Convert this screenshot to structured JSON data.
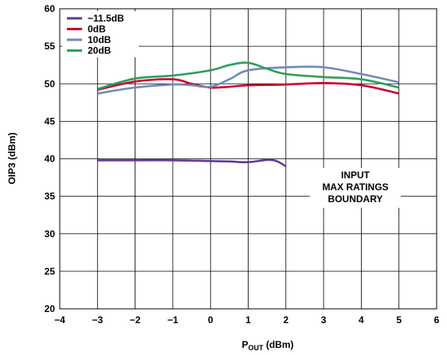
{
  "chart_data": {
    "type": "line",
    "title": "",
    "xlabel_main": "P",
    "xlabel_sub": "OUT",
    "xlabel_unit": " (dBm)",
    "ylabel": "OIP3 (dBm)",
    "xlim": [
      -4,
      6
    ],
    "ylim": [
      20,
      60
    ],
    "x_ticks": [
      "−4",
      "−3",
      "−2",
      "−1",
      "0",
      "1",
      "2",
      "3",
      "4",
      "5",
      "6"
    ],
    "y_ticks": [
      "20",
      "25",
      "30",
      "35",
      "40",
      "45",
      "50",
      "55",
      "60"
    ],
    "grid": true,
    "legend_position": "top-left",
    "annotation": [
      "INPUT",
      "MAX RATINGS",
      "BOUNDARY"
    ],
    "series": [
      {
        "name": "−11.5dB",
        "color": "#5b3a96",
        "points": [
          [
            -3,
            39.8
          ],
          [
            -2,
            39.8
          ],
          [
            -1,
            39.8
          ],
          [
            0,
            39.7
          ],
          [
            0.5,
            39.65
          ],
          [
            1,
            39.55
          ],
          [
            1.5,
            39.85
          ],
          [
            1.75,
            39.7
          ],
          [
            2,
            39.0
          ]
        ]
      },
      {
        "name": "0dB",
        "color": "#cc0033",
        "points": [
          [
            -3,
            49.2
          ],
          [
            -2,
            50.3
          ],
          [
            -1,
            50.6
          ],
          [
            -0.5,
            50.0
          ],
          [
            0,
            49.5
          ],
          [
            0.5,
            49.6
          ],
          [
            1,
            49.8
          ],
          [
            2,
            49.9
          ],
          [
            3,
            50.1
          ],
          [
            4,
            49.8
          ],
          [
            5,
            48.7
          ]
        ]
      },
      {
        "name": "10dB",
        "color": "#6f8ab8",
        "points": [
          [
            -3,
            48.7
          ],
          [
            -2,
            49.5
          ],
          [
            -1,
            49.9
          ],
          [
            -0.5,
            49.8
          ],
          [
            0,
            49.6
          ],
          [
            0.5,
            50.6
          ],
          [
            1,
            51.8
          ],
          [
            2,
            52.2
          ],
          [
            3,
            52.2
          ],
          [
            4,
            51.3
          ],
          [
            5,
            50.2
          ]
        ]
      },
      {
        "name": "20dB",
        "color": "#2e9e5b",
        "points": [
          [
            -3,
            49.3
          ],
          [
            -2,
            50.7
          ],
          [
            -1,
            51.1
          ],
          [
            0,
            51.8
          ],
          [
            0.5,
            52.5
          ],
          [
            1,
            52.8
          ],
          [
            1.5,
            52.0
          ],
          [
            2,
            51.3
          ],
          [
            3,
            50.9
          ],
          [
            4,
            50.6
          ],
          [
            5,
            49.5
          ]
        ]
      }
    ]
  }
}
